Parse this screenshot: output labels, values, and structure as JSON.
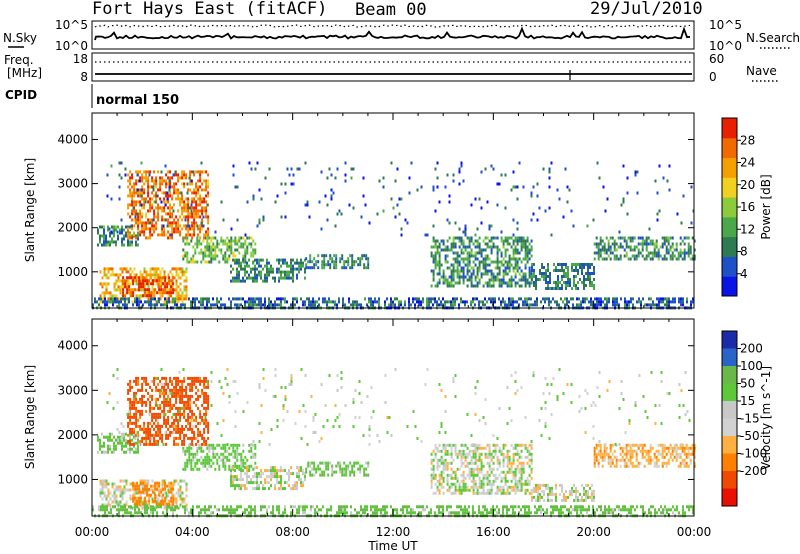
{
  "header": {
    "radar": "Fort Hays East (fitACF)",
    "beam": "Beam 00",
    "date": "29/Jul/2010"
  },
  "noise_panel": {
    "left_label": "N.Sky",
    "right_label": "N.Search",
    "left_ticks": [
      "10^5",
      "10^0"
    ],
    "right_ticks": [
      "10^5",
      "10^0"
    ]
  },
  "freq_panel": {
    "left_label_1": "Freq.",
    "left_label_2": "[MHz]",
    "right_label": "Nave",
    "left_ticks": [
      "18",
      "8"
    ],
    "right_ticks": [
      "60",
      "0"
    ]
  },
  "cpid_panel": {
    "label": "CPID",
    "mode": "normal 150"
  },
  "x_axis": {
    "label": "Time UT",
    "ticks": [
      "00:00",
      "04:00",
      "08:00",
      "12:00",
      "16:00",
      "20:00",
      "00:00"
    ]
  },
  "colors": {
    "power_scale": [
      "#0a14e6",
      "#1e50c8",
      "#2e7a52",
      "#4aa84a",
      "#8ccc3c",
      "#f0d020",
      "#f5a000",
      "#f06a00",
      "#e82000"
    ],
    "velocity_scale": [
      "#1a2aa8",
      "#2b64c8",
      "#6ab84a",
      "#5cc83a",
      "#c8c8c8",
      "#d2d2d2",
      "#ffb040",
      "#ff8000",
      "#f04a00",
      "#e81000"
    ]
  },
  "chart_data": [
    {
      "type": "heatmap",
      "title": "",
      "xlabel": "Time UT",
      "ylabel": "Slant Range [km]",
      "x_range_hours": [
        0,
        24
      ],
      "ylim": [
        180,
        4600
      ],
      "yticks": [
        1000,
        2000,
        3000,
        4000
      ],
      "colorbar": {
        "label": "Power [dB]",
        "ticks": [
          4,
          8,
          12,
          16,
          20,
          24,
          28
        ],
        "range": [
          0,
          32
        ]
      },
      "regions": [
        {
          "t0": 0.3,
          "t1": 3.8,
          "r0": 300,
          "r1": 1100,
          "value": 22
        },
        {
          "t0": 1.2,
          "t1": 3.2,
          "r0": 450,
          "r1": 900,
          "value": 29
        },
        {
          "t0": 0.2,
          "t1": 1.8,
          "r0": 1600,
          "r1": 2050,
          "value": 10
        },
        {
          "t0": 3.6,
          "t1": 6.5,
          "r0": 1200,
          "r1": 1800,
          "value": 14
        },
        {
          "t0": 5.5,
          "t1": 8.5,
          "r0": 800,
          "r1": 1300,
          "value": 9
        },
        {
          "t0": 8.5,
          "t1": 11.0,
          "r0": 1100,
          "r1": 1400,
          "value": 9
        },
        {
          "t0": 13.5,
          "t1": 17.5,
          "r0": 700,
          "r1": 1800,
          "value": 10
        },
        {
          "t0": 17.5,
          "t1": 20.0,
          "r0": 600,
          "r1": 1200,
          "value": 9
        },
        {
          "t0": 20.0,
          "t1": 24.0,
          "r0": 1300,
          "r1": 1800,
          "value": 10
        },
        {
          "t0": 0.0,
          "t1": 24.0,
          "r0": 180,
          "r1": 420,
          "value": 7
        },
        {
          "t0": 1.4,
          "t1": 4.6,
          "r0": 1800,
          "r1": 3300,
          "value": 26
        },
        {
          "t0": 0.5,
          "t1": 24.0,
          "r0": 1800,
          "r1": 3500,
          "value": 6
        }
      ]
    },
    {
      "type": "heatmap",
      "title": "",
      "xlabel": "Time UT",
      "ylabel": "Slant Range [km]",
      "x_range_hours": [
        0,
        24
      ],
      "ylim": [
        180,
        4600
      ],
      "yticks": [
        1000,
        2000,
        3000,
        4000
      ],
      "colorbar": {
        "label": "Velocity [m s^-1]",
        "ticks": [
          200,
          100,
          50,
          15,
          -15,
          -50,
          -100,
          -200
        ],
        "range": [
          -250,
          250
        ]
      },
      "regions": [
        {
          "t0": 0.3,
          "t1": 3.8,
          "r0": 350,
          "r1": 1000,
          "value": 0
        },
        {
          "t0": 1.6,
          "t1": 3.2,
          "r0": 450,
          "r1": 950,
          "value": -70
        },
        {
          "t0": 0.2,
          "t1": 1.8,
          "r0": 1600,
          "r1": 2050,
          "value": 30
        },
        {
          "t0": 3.6,
          "t1": 6.5,
          "r0": 1200,
          "r1": 1800,
          "value": 30
        },
        {
          "t0": 5.5,
          "t1": 8.5,
          "r0": 800,
          "r1": 1300,
          "value": 5
        },
        {
          "t0": 8.5,
          "t1": 11.0,
          "r0": 1100,
          "r1": 1400,
          "value": 35
        },
        {
          "t0": 13.5,
          "t1": 17.5,
          "r0": 700,
          "r1": 1800,
          "value": 5
        },
        {
          "t0": 17.5,
          "t1": 20.0,
          "r0": 500,
          "r1": 900,
          "value": 0
        },
        {
          "t0": 20.0,
          "t1": 24.0,
          "r0": 1300,
          "r1": 1800,
          "value": -30
        },
        {
          "t0": 0.0,
          "t1": 24.0,
          "r0": 180,
          "r1": 420,
          "value": 40
        },
        {
          "t0": 1.4,
          "t1": 4.6,
          "r0": 1800,
          "r1": 3300,
          "value": -120
        },
        {
          "t0": 0.5,
          "t1": 24.0,
          "r0": 1800,
          "r1": 3500,
          "value": 10
        }
      ]
    }
  ]
}
